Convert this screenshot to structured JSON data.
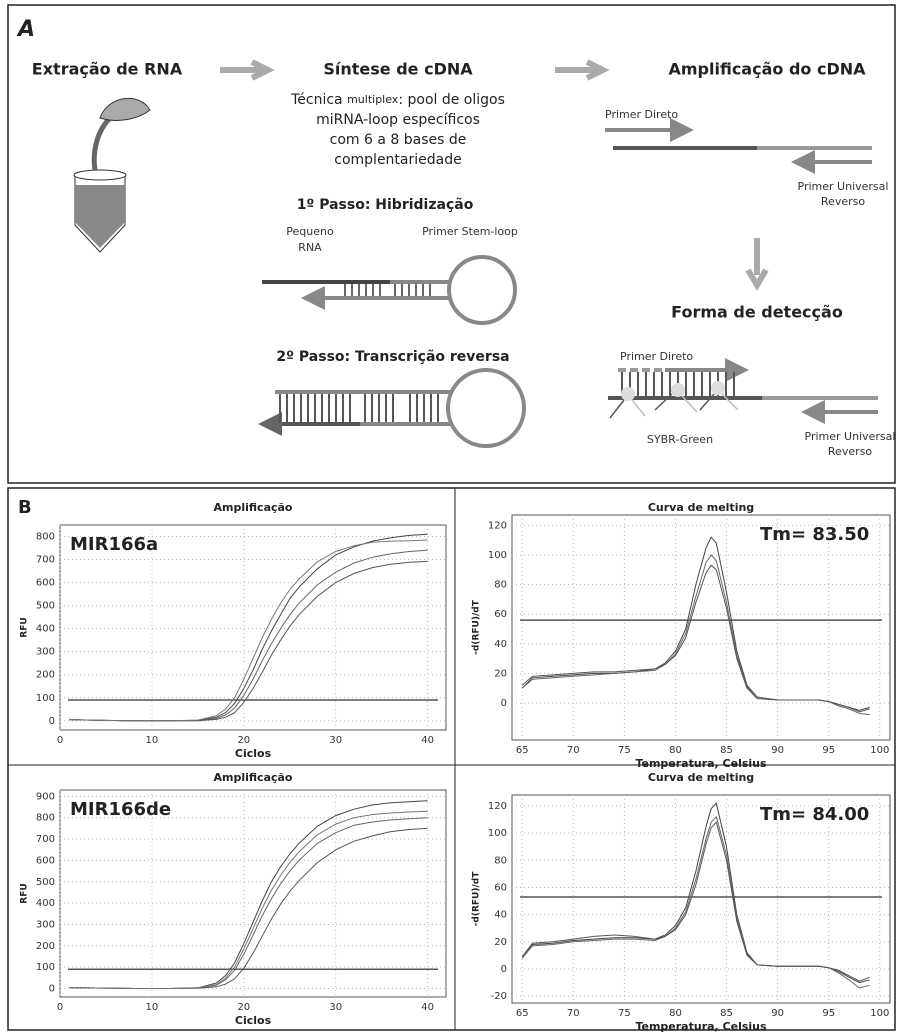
{
  "panel_a": {
    "label": "A",
    "step_extract": "Extração de RNA",
    "step_synthesis": "Síntese de cDNA",
    "step_amplification": "Amplificação do cDNA",
    "technique_prefix": "Técnica",
    "technique_em": "multiplex",
    "technique_rest": ": pool de oligos",
    "technique_lines": [
      "miRNA-loop específicos",
      "com 6 a 8 bases de",
      "complentariedade"
    ],
    "step1": "1º Passo: Hibridização",
    "small_rna": [
      "Pequeno",
      "RNA"
    ],
    "stem_loop": "Primer Stem-loop",
    "step2": "2º Passo: Transcrição reversa",
    "primer_direct": "Primer Direto",
    "primer_reverse": [
      "Primer Universal",
      "Reverso"
    ],
    "detection": "Forma de detecção",
    "detection_primer_direct": "Primer Direto",
    "sybr": "SYBR-Green",
    "detection_primer_reverse": [
      "Primer Universal",
      "Reverso"
    ]
  },
  "panel_b": {
    "label": "B"
  },
  "chart_data": [
    {
      "type": "line",
      "title": "Amplificação",
      "annotation": "MIR166a",
      "x_label": "Ciclos",
      "y_label": "RFU",
      "xlim": [
        0,
        42
      ],
      "xticks": [
        0,
        10,
        20,
        30,
        40
      ],
      "ylim": [
        -40,
        850
      ],
      "yticks": [
        0,
        100,
        200,
        300,
        400,
        500,
        600,
        700,
        800
      ],
      "grid": true,
      "threshold": 90,
      "x": [
        1,
        4,
        8,
        12,
        15,
        17,
        18,
        19,
        20,
        21,
        22,
        23,
        24,
        25,
        26,
        28,
        30,
        32,
        34,
        36,
        38,
        40
      ],
      "series": [
        {
          "color": "#444444",
          "values": [
            5,
            2,
            0,
            0,
            2,
            15,
            35,
            75,
            140,
            220,
            310,
            390,
            460,
            530,
            580,
            660,
            720,
            755,
            780,
            795,
            805,
            810
          ]
        },
        {
          "color": "#666666",
          "values": [
            5,
            2,
            0,
            0,
            1,
            10,
            25,
            55,
            110,
            180,
            260,
            335,
            400,
            460,
            510,
            590,
            645,
            685,
            710,
            725,
            735,
            740
          ]
        },
        {
          "color": "#555555",
          "values": [
            5,
            2,
            0,
            0,
            0,
            6,
            15,
            35,
            80,
            140,
            210,
            285,
            350,
            410,
            460,
            540,
            600,
            640,
            665,
            680,
            688,
            692
          ]
        },
        {
          "color": "#777777",
          "values": [
            5,
            2,
            0,
            0,
            3,
            22,
            50,
            100,
            180,
            270,
            360,
            440,
            510,
            570,
            615,
            690,
            735,
            760,
            775,
            780,
            782,
            785
          ]
        }
      ]
    },
    {
      "type": "line",
      "title": "Curva de melting",
      "annotation": "Tm= 83.50",
      "x_label": "Temperatura, Celsius",
      "y_label": "-d(RFU)/dT",
      "xlim": [
        64,
        101
      ],
      "xticks": [
        65,
        70,
        75,
        80,
        85,
        90,
        95,
        100
      ],
      "ylim": [
        -25,
        127
      ],
      "yticks": [
        0,
        20,
        40,
        60,
        80,
        100,
        120
      ],
      "grid": true,
      "threshold": 56,
      "x": [
        65,
        66,
        68,
        70,
        72,
        74,
        76,
        78,
        79,
        80,
        81,
        82,
        83,
        83.5,
        84,
        85,
        86,
        87,
        88,
        90,
        92,
        94,
        95,
        96,
        97,
        98,
        99
      ],
      "series": [
        {
          "color": "#444444",
          "values": [
            10,
            17,
            18,
            19,
            20,
            20,
            21,
            23,
            27,
            35,
            50,
            80,
            105,
            112,
            108,
            75,
            35,
            12,
            4,
            2,
            2,
            2,
            1,
            -1,
            -3,
            -5,
            -3
          ]
        },
        {
          "color": "#666666",
          "values": [
            10,
            16,
            17,
            18,
            19,
            20,
            21,
            22,
            26,
            33,
            47,
            72,
            95,
            100,
            96,
            68,
            32,
            11,
            4,
            2,
            2,
            2,
            1,
            -2,
            -4,
            -7,
            -8
          ]
        },
        {
          "color": "#555555",
          "values": [
            12,
            18,
            19,
            20,
            21,
            21,
            22,
            23,
            26,
            32,
            44,
            68,
            88,
            93,
            90,
            64,
            30,
            10,
            3,
            2,
            2,
            2,
            1,
            -1,
            -3,
            -6,
            -4
          ]
        }
      ]
    },
    {
      "type": "line",
      "title": "Amplificação",
      "annotation": "MIR166de",
      "x_label": "Ciclos",
      "y_label": "RFU",
      "xlim": [
        0,
        42
      ],
      "xticks": [
        0,
        10,
        20,
        30,
        40
      ],
      "ylim": [
        -40,
        930
      ],
      "yticks": [
        0,
        100,
        200,
        300,
        400,
        500,
        600,
        700,
        800,
        900
      ],
      "grid": true,
      "threshold": 90,
      "x": [
        1,
        4,
        8,
        12,
        15,
        17,
        18,
        19,
        20,
        21,
        22,
        23,
        24,
        25,
        26,
        28,
        30,
        32,
        34,
        36,
        38,
        40
      ],
      "series": [
        {
          "color": "#444444",
          "values": [
            4,
            2,
            0,
            0,
            3,
            25,
            60,
            120,
            210,
            310,
            410,
            500,
            570,
            630,
            680,
            760,
            810,
            840,
            860,
            870,
            875,
            880
          ]
        },
        {
          "color": "#666666",
          "values": [
            4,
            2,
            0,
            0,
            2,
            15,
            40,
            85,
            160,
            250,
            340,
            420,
            490,
            550,
            600,
            680,
            730,
            765,
            780,
            790,
            795,
            800
          ]
        },
        {
          "color": "#555555",
          "values": [
            4,
            2,
            0,
            0,
            1,
            8,
            20,
            45,
            95,
            165,
            245,
            325,
            395,
            455,
            505,
            590,
            650,
            690,
            715,
            735,
            745,
            750
          ]
        },
        {
          "color": "#777777",
          "values": [
            4,
            2,
            0,
            0,
            2,
            18,
            48,
            100,
            185,
            280,
            375,
            460,
            530,
            590,
            640,
            720,
            770,
            800,
            815,
            822,
            827,
            830
          ]
        }
      ]
    },
    {
      "type": "line",
      "title": "Curva de melting",
      "annotation": "Tm= 84.00",
      "x_label": "Temperatura, Celsius",
      "y_label": "-d(RFU)/dT",
      "xlim": [
        64,
        101
      ],
      "xticks": [
        65,
        70,
        75,
        80,
        85,
        90,
        95,
        100
      ],
      "ylim": [
        -25,
        128
      ],
      "yticks": [
        -20,
        0,
        20,
        40,
        60,
        80,
        100,
        120
      ],
      "grid": true,
      "threshold": 53,
      "x": [
        65,
        66,
        68,
        70,
        72,
        74,
        76,
        78,
        79,
        80,
        81,
        82,
        83,
        83.5,
        84,
        85,
        86,
        87,
        88,
        90,
        92,
        94,
        95,
        96,
        97,
        98,
        99
      ],
      "series": [
        {
          "color": "#444444",
          "values": [
            8,
            18,
            19,
            21,
            22,
            23,
            23,
            22,
            25,
            32,
            45,
            72,
            105,
            118,
            122,
            90,
            40,
            12,
            3,
            2,
            2,
            2,
            1,
            -2,
            -6,
            -10,
            -8
          ]
        },
        {
          "color": "#666666",
          "values": [
            8,
            17,
            18,
            20,
            21,
            22,
            22,
            21,
            24,
            30,
            42,
            66,
            96,
            108,
            112,
            84,
            37,
            11,
            3,
            2,
            2,
            2,
            1,
            -3,
            -8,
            -14,
            -12
          ]
        },
        {
          "color": "#555555",
          "values": [
            9,
            19,
            20,
            22,
            24,
            25,
            24,
            22,
            24,
            29,
            40,
            62,
            92,
            104,
            108,
            80,
            35,
            10,
            3,
            2,
            2,
            2,
            1,
            -1,
            -5,
            -9,
            -6
          ]
        }
      ]
    }
  ]
}
